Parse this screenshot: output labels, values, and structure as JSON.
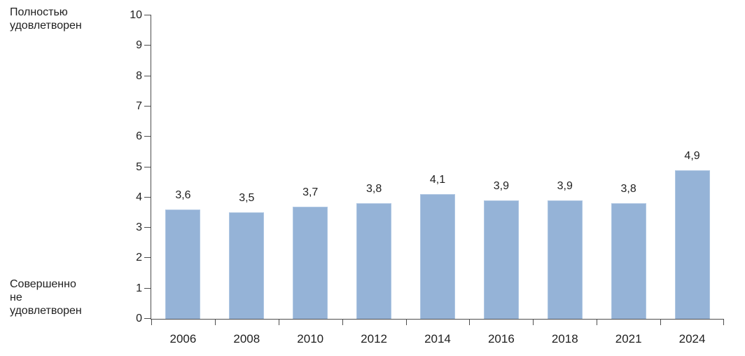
{
  "chart_data": {
    "type": "bar",
    "title": "",
    "categories": [
      "2006",
      "2008",
      "2010",
      "2012",
      "2014",
      "2016",
      "2018",
      "2021",
      "2024"
    ],
    "values": [
      3.6,
      3.5,
      3.7,
      3.8,
      4.1,
      3.9,
      3.9,
      3.8,
      4.9
    ],
    "value_labels": [
      "3,6",
      "3,5",
      "3,7",
      "3,8",
      "4,1",
      "3,9",
      "3,9",
      "3,8",
      "4,9"
    ],
    "yticks": [
      0,
      1,
      2,
      3,
      4,
      5,
      6,
      7,
      8,
      9,
      10
    ],
    "ylim": [
      0,
      10
    ],
    "xlabel": "",
    "ylabel_top": "Полностью\nудовлетворен",
    "ylabel_bottom": "Совершенно\nне\nудовлетворен",
    "grid": false,
    "legend": null,
    "colors": {
      "bar_fill": "#95B3D7",
      "bar_border": "#AEC6E2",
      "axis_line": "#4d4d4d",
      "text": "#1f1f1f"
    }
  }
}
